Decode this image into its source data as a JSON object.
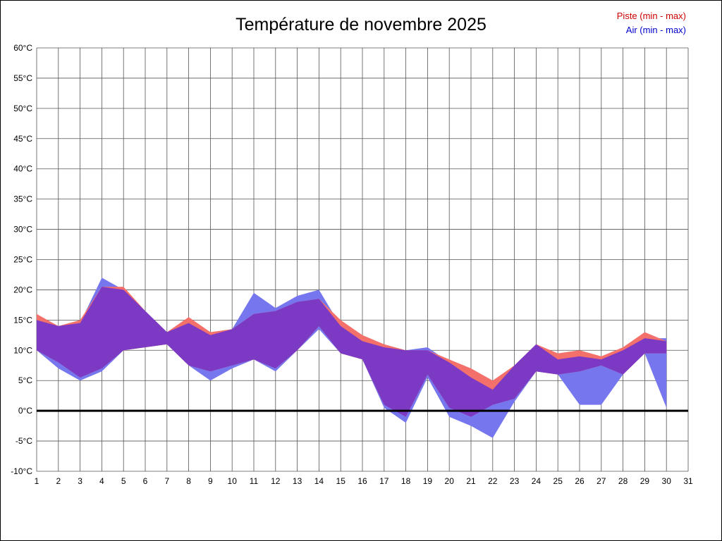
{
  "title": "Température de novembre 2025",
  "legend": [
    {
      "label": "Piste (min - max)",
      "color": "#cc0000"
    },
    {
      "label": "Air (min - max)",
      "color": "#0000cc"
    }
  ],
  "chart_data": {
    "type": "area",
    "title": "Température de novembre 2025",
    "x_axis": "day of November",
    "x": [
      1,
      2,
      3,
      4,
      5,
      6,
      7,
      8,
      9,
      10,
      11,
      12,
      13,
      14,
      15,
      16,
      17,
      18,
      19,
      20,
      21,
      22,
      23,
      24,
      25,
      26,
      27,
      28,
      29,
      30
    ],
    "xlim": [
      1,
      31
    ],
    "ylim": [
      -10,
      60
    ],
    "y_tick_step": 5,
    "y_tick_suffix": "°C",
    "grid": true,
    "series": [
      {
        "name": "Piste min",
        "values": [
          10,
          8,
          5.5,
          7,
          10,
          10.5,
          11,
          7.5,
          6.5,
          7.5,
          8.5,
          7,
          10,
          14,
          9.5,
          8.5,
          1,
          -1,
          6,
          0.5,
          -1,
          1,
          2,
          6.5,
          6,
          6.5,
          7.5,
          6,
          9.5,
          9.5
        ]
      },
      {
        "name": "Piste max",
        "values": [
          16,
          14,
          15,
          20.5,
          20.5,
          16.5,
          13,
          15.5,
          13,
          13.5,
          16,
          16.5,
          18,
          18.5,
          15,
          12.5,
          11,
          10,
          10,
          8.5,
          7,
          5,
          7.5,
          11,
          9.5,
          10,
          9,
          10.5,
          13,
          11.5
        ]
      },
      {
        "name": "Air min",
        "values": [
          10,
          7,
          5,
          6.5,
          10,
          10.5,
          11,
          7.5,
          5,
          7,
          8.5,
          6.5,
          10,
          13.5,
          9.5,
          8.5,
          0.5,
          -2,
          5.5,
          -1,
          -2.5,
          -4.5,
          1.5,
          6.5,
          6,
          1,
          1,
          6,
          9.5,
          0.5
        ]
      },
      {
        "name": "Air max",
        "values": [
          15,
          14,
          14.5,
          22,
          20,
          16.5,
          13,
          14.5,
          12.5,
          13.5,
          19.5,
          17,
          19,
          20,
          14,
          11.5,
          10.5,
          10,
          10.5,
          8,
          5.5,
          3.5,
          7.5,
          11,
          8.5,
          9,
          8.5,
          10,
          12,
          12
        ]
      }
    ],
    "colors": {
      "piste_band": "#F4706B",
      "air_band": "#7677EE",
      "overlap": "#7C3AC4",
      "zero_line": "#000000",
      "grid": "#555555",
      "tick_text": "#000000"
    },
    "legend_position": "top-right"
  }
}
